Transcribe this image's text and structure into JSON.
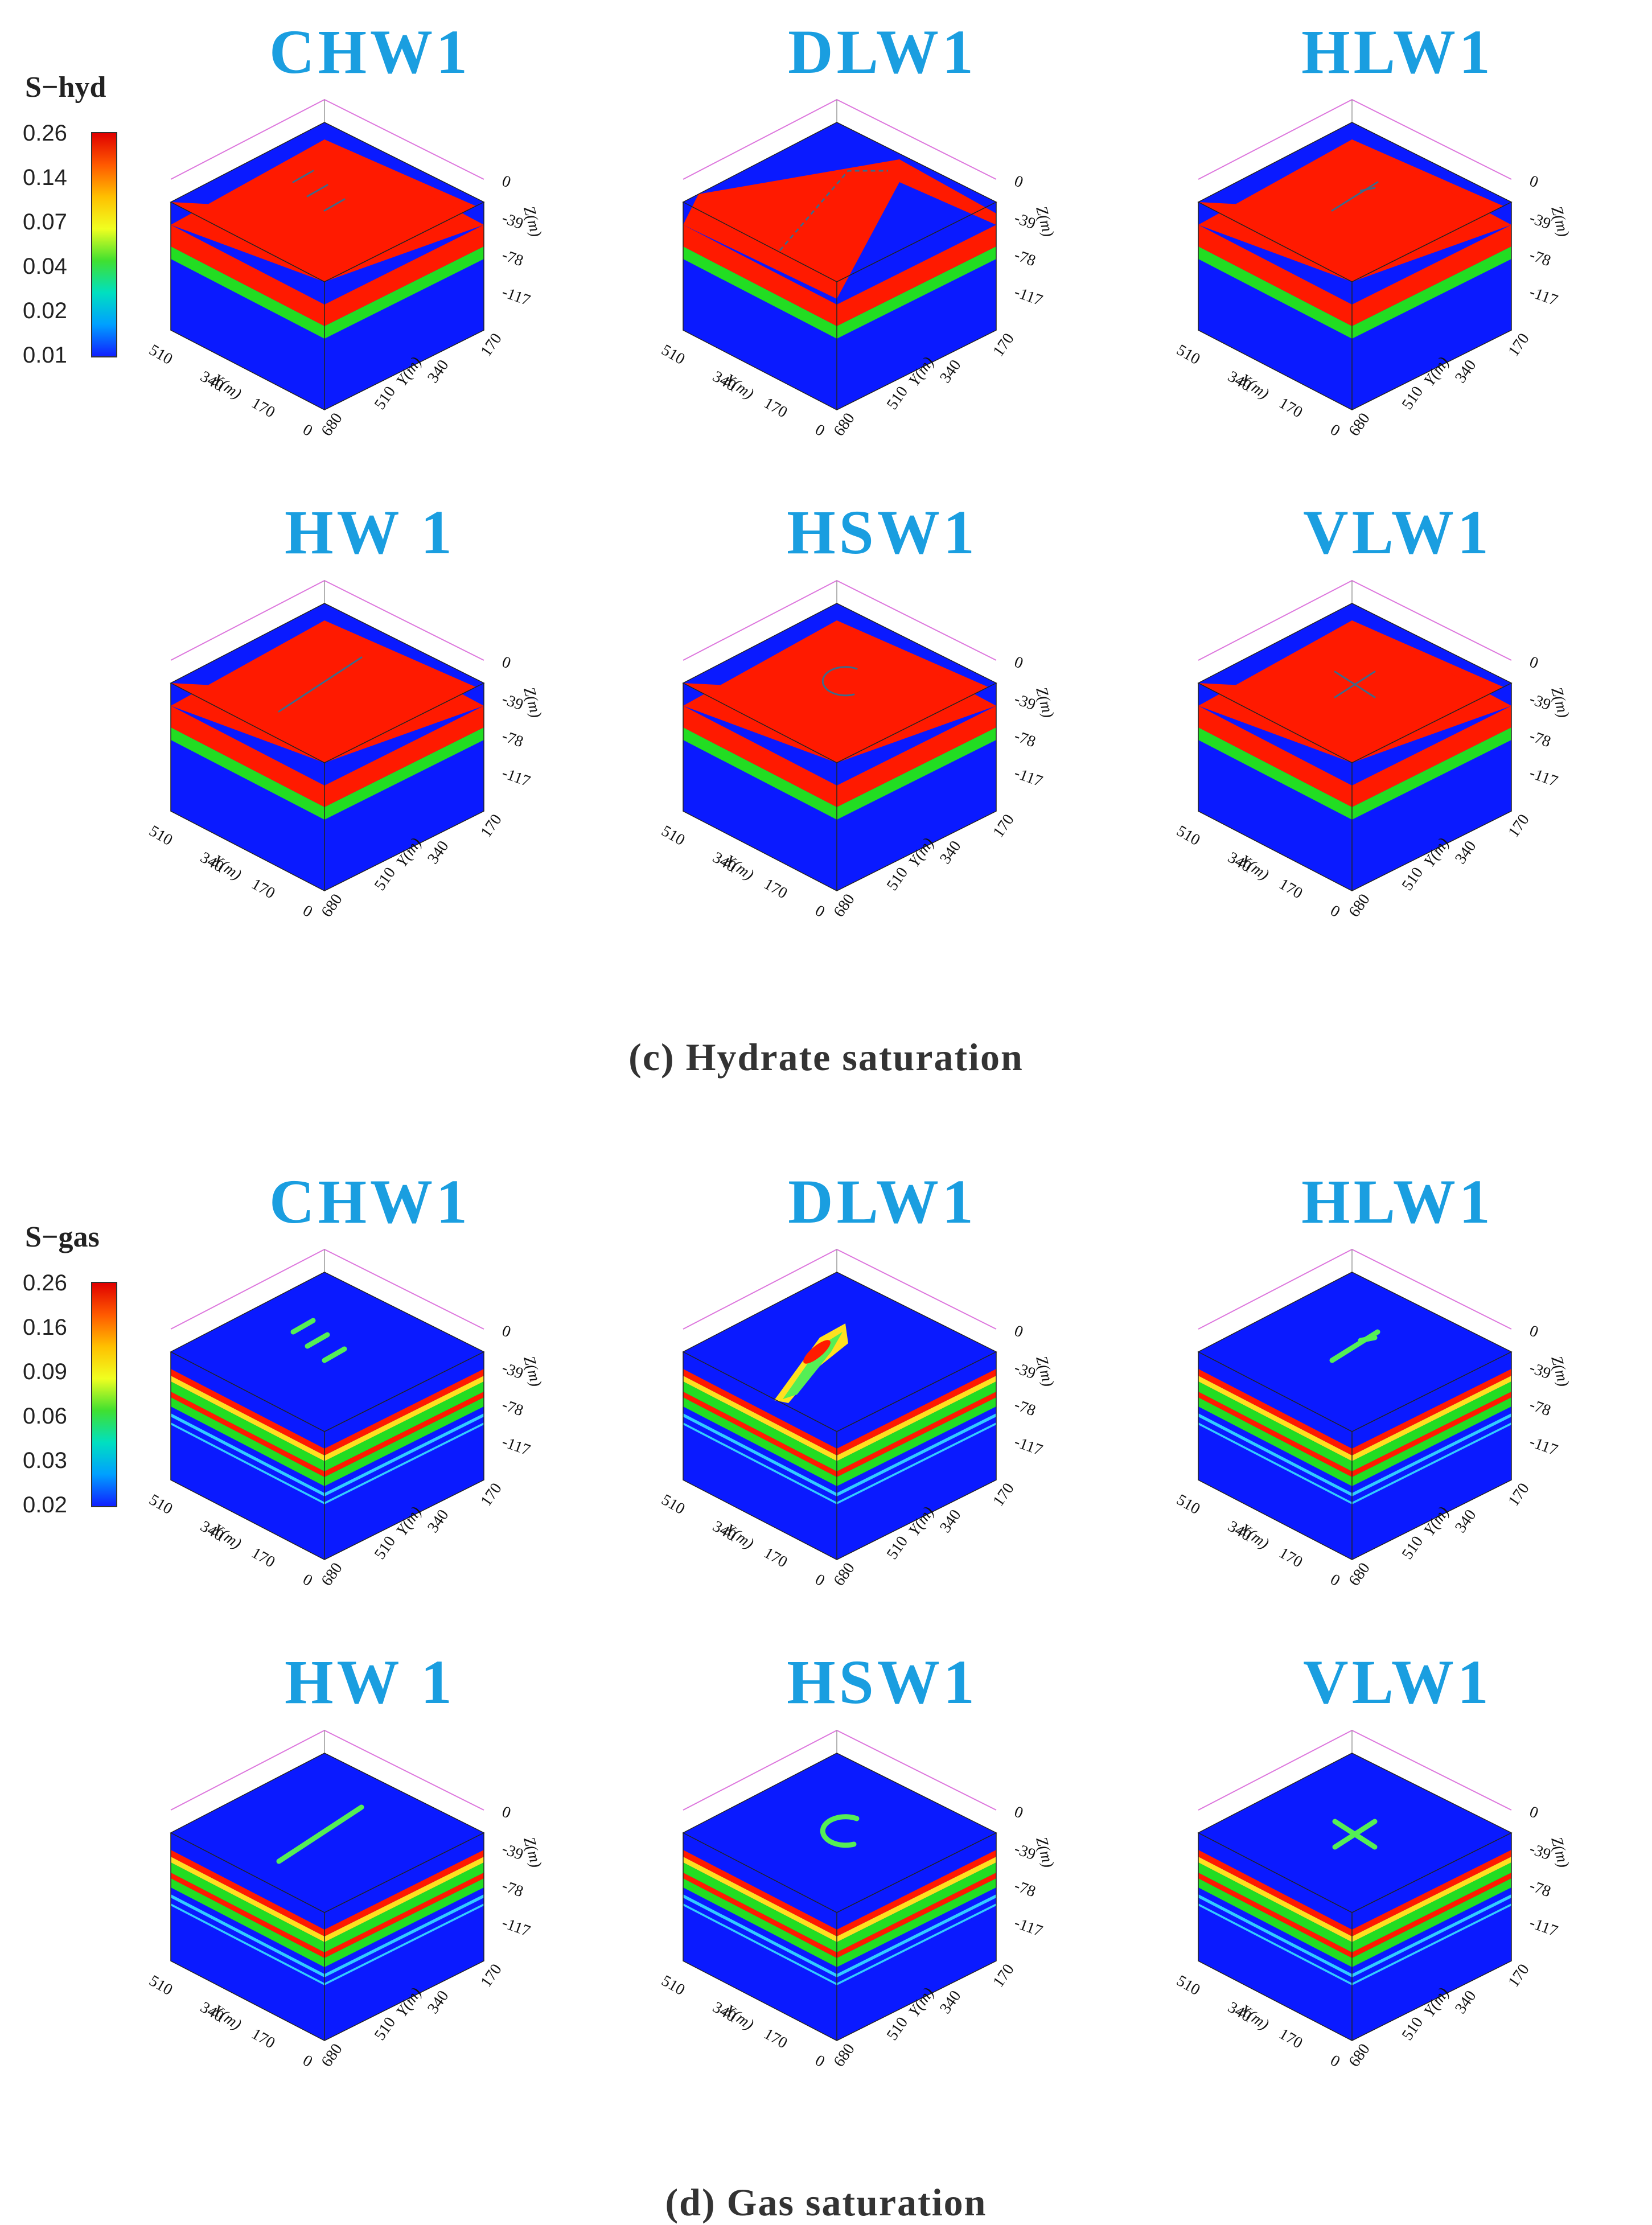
{
  "sections": [
    {
      "key": "hydrate",
      "caption": "(c) Hydrate saturation",
      "colorbar": {
        "title": "S−hyd",
        "ticks": [
          "0.26",
          "0.14",
          "0.07",
          "0.04",
          "0.02",
          "0.01"
        ]
      },
      "panels": [
        {
          "title": "CHW1",
          "well": "chw"
        },
        {
          "title": "DLW1",
          "well": "dlw"
        },
        {
          "title": "HLW1",
          "well": "hlw"
        },
        {
          "title": "HW 1",
          "well": "hw"
        },
        {
          "title": "HSW1",
          "well": "hsw"
        },
        {
          "title": "VLW1",
          "well": "vlw"
        }
      ]
    },
    {
      "key": "gas",
      "caption": "(d) Gas saturation",
      "colorbar": {
        "title": "S−gas",
        "ticks": [
          "0.26",
          "0.16",
          "0.09",
          "0.06",
          "0.03",
          "0.02"
        ]
      },
      "panels": [
        {
          "title": "CHW1",
          "well": "chw"
        },
        {
          "title": "DLW1",
          "well": "dlw"
        },
        {
          "title": "HLW1",
          "well": "hlw"
        },
        {
          "title": "HW 1",
          "well": "hw"
        },
        {
          "title": "HSW1",
          "well": "hsw"
        },
        {
          "title": "VLW1",
          "well": "vlw"
        }
      ]
    }
  ],
  "axes": {
    "x_label": "X(m)",
    "y_label": "Y(m)",
    "z_label": "Z(m)",
    "x_ticks": [
      "510",
      "340",
      "170",
      "0"
    ],
    "y_ticks": [
      "680",
      "510",
      "340",
      "170"
    ],
    "z_ticks": [
      "0",
      "-39",
      "-78",
      "-117"
    ]
  },
  "colors": {
    "title": "#1a9ee0",
    "background_field": "#0a1aff",
    "hydrate_layer": "#ff1a00",
    "green_layer": "#22dd22",
    "cyan_layer": "#33ccff",
    "yellow_layer": "#ffe020",
    "well_hydrate": "#3d6a8a",
    "well_gas": "#55ee55"
  }
}
